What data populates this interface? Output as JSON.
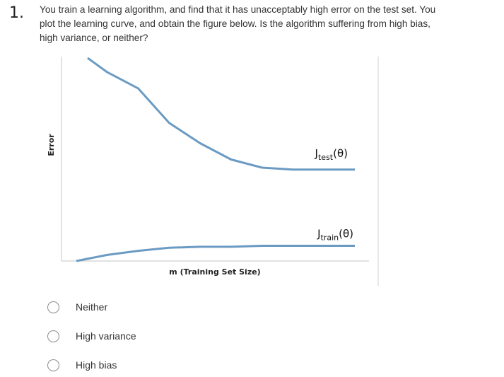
{
  "question": {
    "number": "1.",
    "text": "You train a learning algorithm, and find that it has unacceptably high error on the test set. You plot the learning curve, and obtain the figure below. Is the algorithm suffering from high bias, high variance, or neither?"
  },
  "chart_data": {
    "type": "line",
    "title": "",
    "xlabel": "m (Training Set Size)",
    "ylabel": "Error",
    "ylim": [
      0,
      1
    ],
    "grid": false,
    "legend": "none (curves labelled inline)",
    "x": [
      0,
      1,
      2,
      3,
      4,
      5,
      6,
      7,
      8,
      9
    ],
    "series": [
      {
        "name": "J_test(θ)",
        "label_main": "J",
        "label_sub": "test",
        "label_suffix": "(θ)",
        "color": "#6b9bc3",
        "values": [
          1.0,
          0.93,
          0.85,
          0.68,
          0.58,
          0.5,
          0.46,
          0.45,
          0.45,
          0.45
        ]
      },
      {
        "name": "J_train(θ)",
        "label_main": "J",
        "label_sub": "train",
        "label_suffix": "(θ)",
        "color": "#6b9bc3",
        "values": [
          0.0,
          0.03,
          0.05,
          0.065,
          0.07,
          0.07,
          0.075,
          0.075,
          0.075,
          0.075
        ]
      }
    ]
  },
  "options": [
    {
      "label": "Neither",
      "selected": false
    },
    {
      "label": "High variance",
      "selected": false
    },
    {
      "label": "High bias",
      "selected": false
    }
  ]
}
